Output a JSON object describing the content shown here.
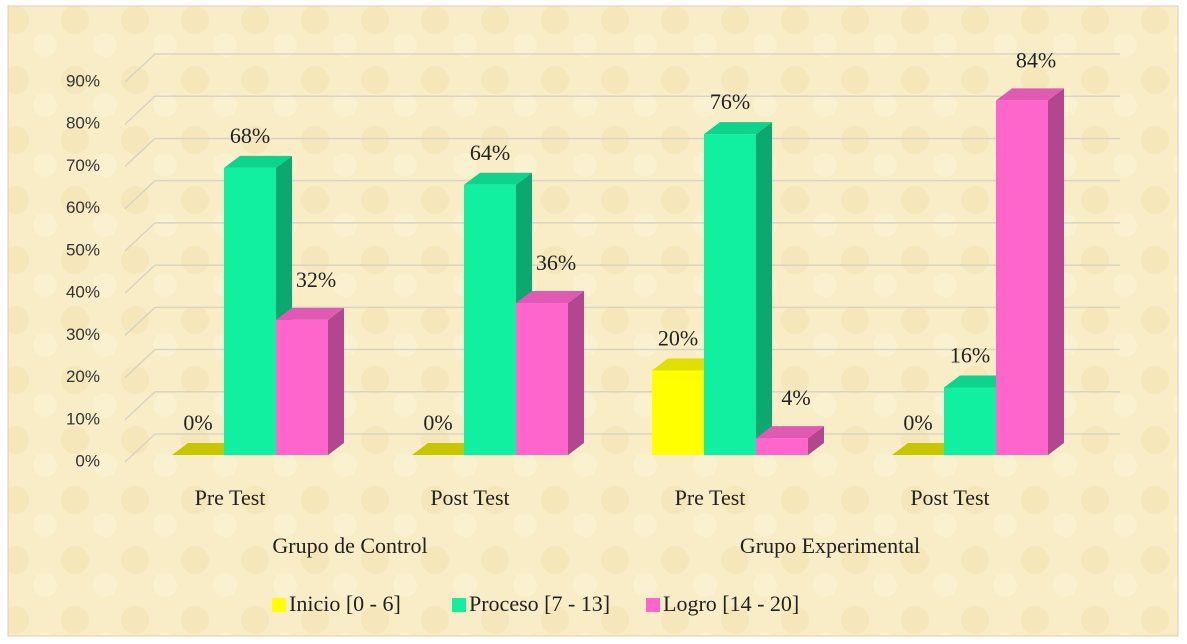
{
  "chart_data": {
    "type": "bar3d",
    "categories": [
      "Pre Test",
      "Post Test",
      "Pre Test",
      "Post Test"
    ],
    "groups": [
      "Grupo de Control",
      "Grupo Experimental"
    ],
    "series": [
      {
        "name": "Inicio [0 - 6]",
        "color": "#ffff00",
        "values": [
          0,
          0,
          20,
          0
        ],
        "value_labels": [
          "0%",
          "0%",
          "20%",
          "0%"
        ]
      },
      {
        "name": "Proceso [7 - 13]",
        "color": "#10f0a0",
        "values": [
          68,
          64,
          76,
          16
        ],
        "value_labels": [
          "68%",
          "64%",
          "76%",
          "16%"
        ]
      },
      {
        "name": "Logro [14 - 20]",
        "color": "#ff66cc",
        "values": [
          32,
          36,
          4,
          84
        ],
        "value_labels": [
          "32%",
          "36%",
          "4%",
          "84%"
        ]
      }
    ],
    "ylim": [
      0,
      90
    ],
    "yticks": [
      {
        "value": 0,
        "label": "0%"
      },
      {
        "value": 10,
        "label": "10%"
      },
      {
        "value": 20,
        "label": "20%"
      },
      {
        "value": 30,
        "label": "30%"
      },
      {
        "value": 40,
        "label": "40%"
      },
      {
        "value": 50,
        "label": "50%"
      },
      {
        "value": 60,
        "label": "60%"
      },
      {
        "value": 70,
        "label": "70%"
      },
      {
        "value": 80,
        "label": "80%"
      },
      {
        "value": 90,
        "label": "90%"
      }
    ],
    "grid": true,
    "legend": "bottom"
  }
}
